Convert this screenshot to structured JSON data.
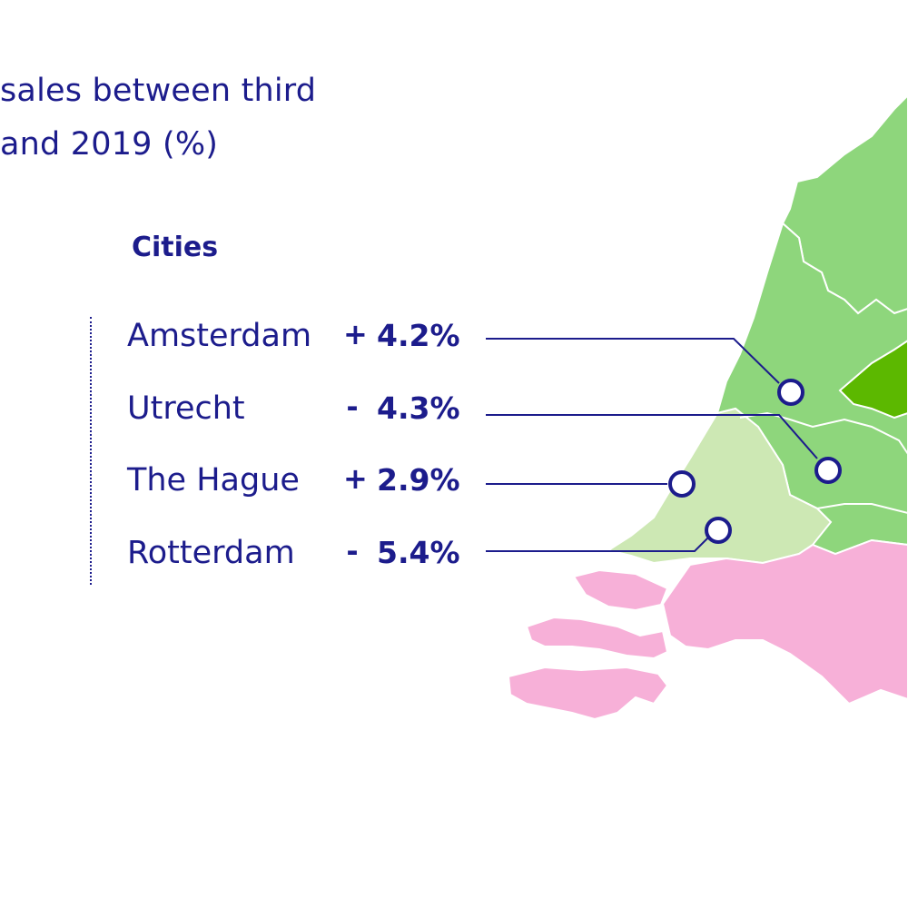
{
  "title": {
    "line1": "sales between third",
    "line2": "and 2019 (%)"
  },
  "legend": {
    "heading": "Cities",
    "items": [
      {
        "city": "Amsterdam",
        "sign": "+",
        "value": "4.2%"
      },
      {
        "city": "Utrecht",
        "sign": "-",
        "value": "4.3%"
      },
      {
        "city": "The Hague",
        "sign": "+",
        "value": "2.9%"
      },
      {
        "city": "Rotterdam",
        "sign": "-",
        "value": "5.4%"
      }
    ]
  },
  "colors": {
    "text": "#1c1c8c",
    "region_light_green": "#cde8b4",
    "region_green": "#8ed67c",
    "region_dark_green": "#5cb800",
    "region_pink": "#f7b0d8",
    "border": "#ffffff"
  }
}
